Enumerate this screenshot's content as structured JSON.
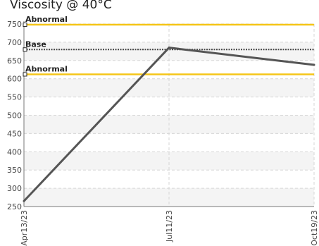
{
  "chart_data": {
    "type": "line",
    "title": "Viscosity @ 40°C",
    "xlabel": "",
    "ylabel": "",
    "x": [
      "Apr13/23",
      "Jul11/23",
      "Oct19/23"
    ],
    "series": [
      {
        "values": [
          265,
          685,
          638
        ]
      }
    ],
    "ylim": [
      250,
      750
    ],
    "yticks": [
      250,
      300,
      350,
      400,
      450,
      500,
      550,
      600,
      650,
      700,
      750
    ],
    "reference_lines": [
      {
        "label": "Abnormal",
        "value": 748,
        "color": "#f5c518",
        "style": "solid"
      },
      {
        "label": "Base",
        "value": 680,
        "color": "#444444",
        "style": "dotted"
      },
      {
        "label": "Abnormal",
        "value": 612,
        "color": "#f5c518",
        "style": "solid"
      }
    ],
    "grid": true,
    "legend": "none",
    "colors": {
      "series": "#555555",
      "grid": "#d6d6d6",
      "band": "#f4f4f4",
      "axis": "#777777"
    }
  }
}
